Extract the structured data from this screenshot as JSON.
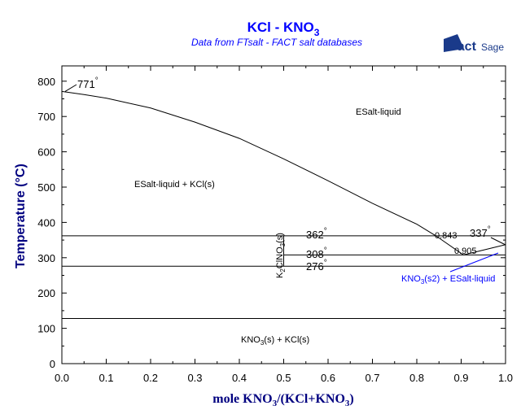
{
  "chart_data": {
    "type": "line",
    "title": "KCl - KNO",
    "title_sub": "3",
    "subtitle": "Data from FTsalt - FACT salt databases",
    "logo": "FactSage",
    "xlabel": "mole KNO",
    "xlabel_sub": "3",
    "xlabel_mid": "/(KCl+KNO",
    "xlabel_sub2": "3",
    "xlabel_end": ")",
    "ylabel": "Temperature (°C)",
    "xlim": [
      0,
      1
    ],
    "ylim": [
      0,
      850
    ],
    "xticks": [
      "0.0",
      "0.1",
      "0.2",
      "0.3",
      "0.4",
      "0.5",
      "0.6",
      "0.7",
      "0.8",
      "0.9",
      "1.0"
    ],
    "yticks": [
      "0",
      "100",
      "200",
      "300",
      "400",
      "500",
      "600",
      "700",
      "800"
    ],
    "liquidus_left": {
      "x": [
        0,
        0.05,
        0.1,
        0.2,
        0.3,
        0.4,
        0.5,
        0.6,
        0.7,
        0.8,
        0.843,
        0.905
      ],
      "y": [
        771,
        762,
        752,
        724,
        684,
        638,
        580,
        518,
        454,
        395,
        362,
        308
      ]
    },
    "liquidus_right": {
      "x": [
        0.905,
        1.0
      ],
      "y": [
        308,
        337
      ]
    },
    "horizontal_lines": [
      {
        "y": 362,
        "x0": 0,
        "x1": 1
      },
      {
        "y": 308,
        "x0": 0.5,
        "x1": 1
      },
      {
        "y": 276,
        "x0": 0,
        "x1": 1
      },
      {
        "y": 128,
        "x0": 0,
        "x1": 1
      }
    ],
    "compound_line": {
      "x": 0.5,
      "y0": 276,
      "y1": 362
    },
    "annotations": {
      "t771": "771",
      "t362": "362",
      "t308": "308",
      "t276": "276",
      "t337": "337",
      "x843": "0.843",
      "x905": "0.905",
      "deg": "°",
      "liq": "ESalt-liquid",
      "liq_kcl": "ESalt-liquid + KCl(s)",
      "comp_a": "K",
      "comp_b": "2",
      "comp_c": "ClNO",
      "comp_d": "3",
      "comp_e": "(s)",
      "knokcl_a": "KNO",
      "knokcl_b": "3",
      "knokcl_c": "(s) + KCl(s)",
      "kno2_a": "KNO",
      "kno2_b": "3",
      "kno2_c": "(s2) + ESalt-liquid"
    },
    "colors": {
      "title": "#0000ff",
      "axis_label": "#000080",
      "line": "#000000",
      "blue_label": "#0000ff",
      "logo": "#1a3a8a"
    }
  }
}
